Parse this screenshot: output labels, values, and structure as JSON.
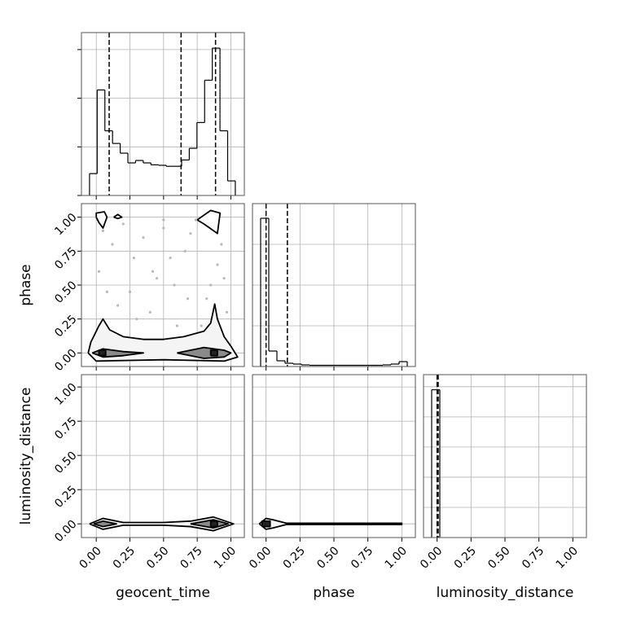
{
  "chart_data": [
    {
      "type": "histogram",
      "xlim": [
        -0.11,
        1.1
      ],
      "xticks": [
        0,
        0.25,
        0.5,
        0.75,
        1
      ],
      "ylim": [
        0,
        3.35
      ],
      "yticks": [
        0,
        1,
        2,
        3
      ],
      "color": "#000000",
      "bins": [
        -0.05,
        0.007,
        0.064,
        0.121,
        0.178,
        0.235,
        0.292,
        0.349,
        0.406,
        0.463,
        0.52,
        0.577,
        0.634,
        0.691,
        0.748,
        0.805,
        0.862,
        0.919,
        0.976,
        1.033
      ],
      "values": [
        0.45,
        2.17,
        1.33,
        1.07,
        0.87,
        0.67,
        0.72,
        0.67,
        0.63,
        0.62,
        0.6,
        0.6,
        0.73,
        0.97,
        1.5,
        2.37,
        3.03,
        1.33,
        0.3
      ],
      "quantiles": [
        0.096,
        0.63,
        0.886
      ]
    },
    {
      "type": "contour",
      "xlim": [
        -0.11,
        1.1
      ],
      "xticks": [
        0,
        0.25,
        0.5,
        0.75,
        1
      ],
      "ylim": [
        -0.1,
        1.1
      ],
      "yticks": [
        {
          "value": 0,
          "label": "0.00"
        },
        {
          "value": 0.25,
          "label": "0.25"
        },
        {
          "value": 0.5,
          "label": "0.50"
        },
        {
          "value": 0.75,
          "label": "0.75"
        },
        {
          "value": 1,
          "label": "1.00"
        }
      ],
      "ylabel": "phase",
      "points": {
        "color": "#b8b8b8",
        "x": [
          0.05,
          0.12,
          0.2,
          0.28,
          0.35,
          0.42,
          0.5,
          0.58,
          0.66,
          0.74,
          0.82,
          0.9,
          0.97,
          0.08,
          0.16,
          0.3,
          0.45,
          0.6,
          0.7,
          0.85,
          0.93,
          0.02,
          0.25,
          0.4,
          0.55,
          0.68,
          0.78,
          0.95,
          0.1,
          0.5
        ],
        "y": [
          0.9,
          0.8,
          0.95,
          0.7,
          0.85,
          0.6,
          0.92,
          0.5,
          0.75,
          0.98,
          0.4,
          0.65,
          0.3,
          0.45,
          0.35,
          0.25,
          0.55,
          0.2,
          0.88,
          0.5,
          0.8,
          0.6,
          0.45,
          0.3,
          0.7,
          0.4,
          0.2,
          0.55,
          0.15,
          0.98
        ]
      },
      "contours": [
        {
          "fill": "#f4f4f4",
          "x": [
            -0.06,
            -0.04,
            0.02,
            0.05,
            0.1,
            0.2,
            0.35,
            0.5,
            0.65,
            0.8,
            0.85,
            0.88,
            0.9,
            0.95,
            1.0,
            1.05,
            0.95,
            0.5,
            0.0,
            -0.06
          ],
          "y": [
            0.0,
            0.08,
            0.2,
            0.25,
            0.17,
            0.12,
            0.1,
            0.1,
            0.12,
            0.16,
            0.22,
            0.36,
            0.25,
            0.12,
            0.05,
            -0.03,
            -0.06,
            -0.05,
            -0.06,
            0.0
          ]
        },
        {
          "fill": "#8a8a8a",
          "x": [
            -0.03,
            0.05,
            0.2,
            0.35,
            0.2,
            0.05,
            -0.03
          ],
          "y": [
            0.0,
            0.03,
            0.01,
            0.0,
            -0.02,
            -0.03,
            0.0
          ]
        },
        {
          "fill": "#8a8a8a",
          "x": [
            0.6,
            0.8,
            0.95,
            1.0,
            0.95,
            0.8,
            0.6
          ],
          "y": [
            0.0,
            0.04,
            0.02,
            0.0,
            -0.03,
            -0.04,
            0.0
          ]
        },
        {
          "fill": "#ffffff",
          "x": [
            0.0,
            0.02,
            0.05,
            0.08,
            0.06,
            0.0,
            0.0
          ],
          "y": [
            1.0,
            0.96,
            0.92,
            1.0,
            1.04,
            1.03,
            1.0
          ]
        },
        {
          "fill": "#ffffff",
          "x": [
            0.13,
            0.16,
            0.19,
            0.16,
            0.13
          ],
          "y": [
            1.0,
            1.02,
            1.0,
            0.99,
            1.0
          ]
        },
        {
          "fill": "#ffffff",
          "x": [
            0.75,
            0.85,
            0.92,
            0.9,
            0.8,
            0.75
          ],
          "y": [
            0.98,
            1.05,
            1.03,
            0.88,
            0.95,
            0.98
          ]
        },
        {
          "fill": "#222222",
          "x": [
            0.02,
            0.07,
            0.07,
            0.02,
            0.02
          ],
          "y": [
            -0.02,
            -0.02,
            0.02,
            0.02,
            -0.02
          ]
        },
        {
          "fill": "#222222",
          "x": [
            0.85,
            0.9,
            0.9,
            0.85,
            0.85
          ],
          "y": [
            -0.02,
            -0.02,
            0.02,
            0.02,
            -0.02
          ]
        }
      ]
    },
    {
      "type": "histogram",
      "xlim": [
        -0.1,
        1.1
      ],
      "xticks": [
        0,
        0.25,
        0.5,
        0.75,
        1
      ],
      "ylim": [
        0,
        4
      ],
      "yticks": [
        1,
        2,
        3
      ],
      "color": "#000000",
      "bins": [
        -0.04,
        0.02,
        0.08,
        0.14,
        0.2,
        0.26,
        0.32,
        0.38,
        0.44,
        0.5,
        0.56,
        0.62,
        0.68,
        0.74,
        0.8,
        0.86,
        0.92,
        0.98,
        1.04
      ],
      "values": [
        3.64,
        0.38,
        0.14,
        0.08,
        0.06,
        0.04,
        0.03,
        0.03,
        0.03,
        0.03,
        0.03,
        0.03,
        0.03,
        0.03,
        0.03,
        0.04,
        0.06,
        0.12
      ],
      "quantiles": [
        0.0,
        0.157
      ]
    },
    {
      "type": "contour",
      "xlim": [
        -0.11,
        1.1
      ],
      "xticks": [
        {
          "value": 0,
          "label": "0.00"
        },
        {
          "value": 0.25,
          "label": "0.25"
        },
        {
          "value": 0.5,
          "label": "0.50"
        },
        {
          "value": 0.75,
          "label": "0.75"
        },
        {
          "value": 1,
          "label": "1.00"
        }
      ],
      "ylim": [
        -0.1,
        1.09
      ],
      "yticks": [
        {
          "value": 0,
          "label": "0.00"
        },
        {
          "value": 0.25,
          "label": "0.25"
        },
        {
          "value": 0.5,
          "label": "0.50"
        },
        {
          "value": 0.75,
          "label": "0.75"
        },
        {
          "value": 1,
          "label": "1.00"
        }
      ],
      "xlabel": "geocent_time",
      "ylabel": "luminosity_distance",
      "contours": [
        {
          "fill": "#f4f4f4",
          "x": [
            -0.05,
            0.05,
            0.2,
            0.5,
            0.7,
            0.87,
            1.02,
            0.87,
            0.7,
            0.5,
            0.2,
            0.05,
            -0.05
          ],
          "y": [
            0.0,
            0.04,
            0.01,
            0.01,
            0.02,
            0.05,
            0.0,
            -0.05,
            -0.02,
            -0.01,
            -0.01,
            -0.04,
            0.0
          ]
        },
        {
          "fill": "#8a8a8a",
          "x": [
            -0.02,
            0.05,
            0.15,
            0.05,
            -0.02
          ],
          "y": [
            0.0,
            0.02,
            0.0,
            -0.02,
            0.0
          ]
        },
        {
          "fill": "#8a8a8a",
          "x": [
            0.7,
            0.87,
            0.98,
            0.87,
            0.7
          ],
          "y": [
            0.0,
            0.03,
            0.0,
            -0.03,
            0.0
          ]
        },
        {
          "fill": "#222222",
          "x": [
            0.85,
            0.9,
            0.9,
            0.85,
            0.85
          ],
          "y": [
            -0.02,
            -0.02,
            0.02,
            0.02,
            -0.02
          ]
        }
      ]
    },
    {
      "type": "contour",
      "xlim": [
        -0.1,
        1.1
      ],
      "xticks": [
        {
          "value": 0,
          "label": "0.00"
        },
        {
          "value": 0.25,
          "label": "0.25"
        },
        {
          "value": 0.5,
          "label": "0.50"
        },
        {
          "value": 0.75,
          "label": "0.75"
        },
        {
          "value": 1,
          "label": "1.00"
        }
      ],
      "ylim": [
        -0.1,
        1.09
      ],
      "yticks": [
        0,
        0.25,
        0.5,
        0.75,
        1
      ],
      "xlabel": "phase",
      "contours": [
        {
          "fill": "#f4f4f4",
          "x": [
            -0.05,
            0.0,
            0.05,
            0.15,
            1.0,
            1.0,
            0.15,
            0.05,
            0.0,
            -0.05
          ],
          "y": [
            0.0,
            0.04,
            0.03,
            0.005,
            0.005,
            -0.005,
            -0.005,
            -0.03,
            -0.04,
            0.0
          ]
        },
        {
          "fill": "#222222",
          "x": [
            -0.03,
            0.03,
            0.03,
            -0.03,
            -0.03
          ],
          "y": [
            -0.02,
            -0.02,
            0.02,
            0.02,
            -0.02
          ]
        }
      ]
    },
    {
      "type": "histogram",
      "xlim": [
        -0.1,
        1.1
      ],
      "xticks": [
        {
          "value": 0,
          "label": "0.00"
        },
        {
          "value": 0.25,
          "label": "0.25"
        },
        {
          "value": 0.5,
          "label": "0.50"
        },
        {
          "value": 0.75,
          "label": "0.75"
        },
        {
          "value": 1,
          "label": "1.00"
        }
      ],
      "ylim": [
        0,
        5.4
      ],
      "yticks": [
        1,
        2,
        3,
        4,
        5
      ],
      "color": "#000000",
      "bins": [
        -0.04,
        0.02
      ],
      "values": [
        4.9
      ],
      "quantiles": [
        0.0,
        0.003,
        0.008
      ],
      "xlabel": "luminosity_distance"
    }
  ]
}
